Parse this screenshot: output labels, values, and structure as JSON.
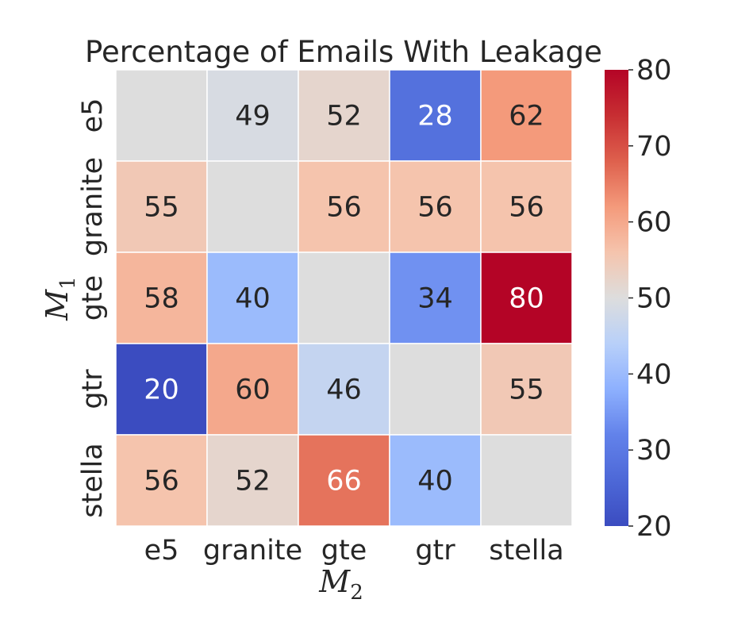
{
  "chart_data": {
    "type": "heatmap",
    "title": "Percentage of Emails With Leakage",
    "xlabel": {
      "main": "M",
      "sub": "2"
    },
    "ylabel": {
      "main": "M",
      "sub": "1"
    },
    "x_categories": [
      "e5",
      "granite",
      "gte",
      "gtr",
      "stella"
    ],
    "y_categories": [
      "e5",
      "granite",
      "gte",
      "gtr",
      "stella"
    ],
    "values": [
      [
        null,
        49,
        52,
        28,
        62
      ],
      [
        55,
        null,
        56,
        56,
        56
      ],
      [
        58,
        40,
        null,
        34,
        80
      ],
      [
        20,
        60,
        46,
        null,
        55
      ],
      [
        56,
        52,
        66,
        40,
        null
      ]
    ],
    "diagonal_fill_value": 50,
    "colormap": "coolwarm",
    "vmin": 20,
    "vmax": 80,
    "colorbar_ticks": [
      "20",
      "30",
      "40",
      "50",
      "60",
      "70",
      "80"
    ],
    "grid": false,
    "colors": {
      "text_dark": "#262626",
      "text_light": "#ffffff",
      "cell_border": "#ffffff"
    }
  }
}
